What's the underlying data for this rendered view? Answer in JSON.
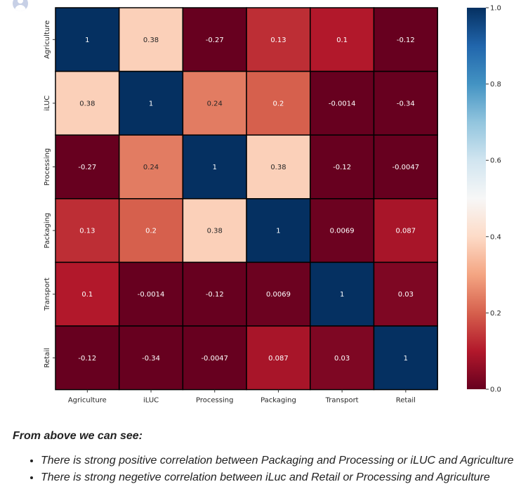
{
  "chart_data": {
    "type": "heatmap",
    "labels": [
      "Agriculture",
      "iLUC",
      "Processing",
      "Packaging",
      "Transport",
      "Retail"
    ],
    "cells": [
      [
        "1",
        "0.38",
        "-0.27",
        "0.13",
        "0.1",
        "-0.12"
      ],
      [
        "0.38",
        "1",
        "0.24",
        "0.2",
        "-0.0014",
        "-0.34"
      ],
      [
        "-0.27",
        "0.24",
        "1",
        "0.38",
        "-0.12",
        "-0.0047"
      ],
      [
        "0.13",
        "0.2",
        "0.38",
        "1",
        "0.0069",
        "0.087"
      ],
      [
        "0.1",
        "-0.0014",
        "-0.12",
        "0.0069",
        "1",
        "0.03"
      ],
      [
        "-0.12",
        "-0.34",
        "-0.0047",
        "0.087",
        "0.03",
        "1"
      ]
    ],
    "colorscale": {
      "name": "RdBu",
      "range": [
        0.0,
        1.0
      ],
      "ticks": [
        "0.0",
        "0.2",
        "0.4",
        "0.6",
        "0.8",
        "1.0"
      ],
      "colors": [
        "#67001f",
        "#b2182b",
        "#d6604d",
        "#f4a582",
        "#fddbc7",
        "#f7f7f7",
        "#d1e5f0",
        "#92c5de",
        "#4393c3",
        "#2166ac",
        "#053061"
      ]
    },
    "gridlines": "black",
    "legend": "right"
  },
  "notes": {
    "heading": "From above we can see:",
    "bullets": [
      "There is strong positive correlation between Packaging and Processing or iLUC and Agriculture",
      "There is strong negetive correlation between iLuc and Retail or Processing and Agriculture"
    ]
  },
  "avatar_icon": "user-avatar-icon"
}
